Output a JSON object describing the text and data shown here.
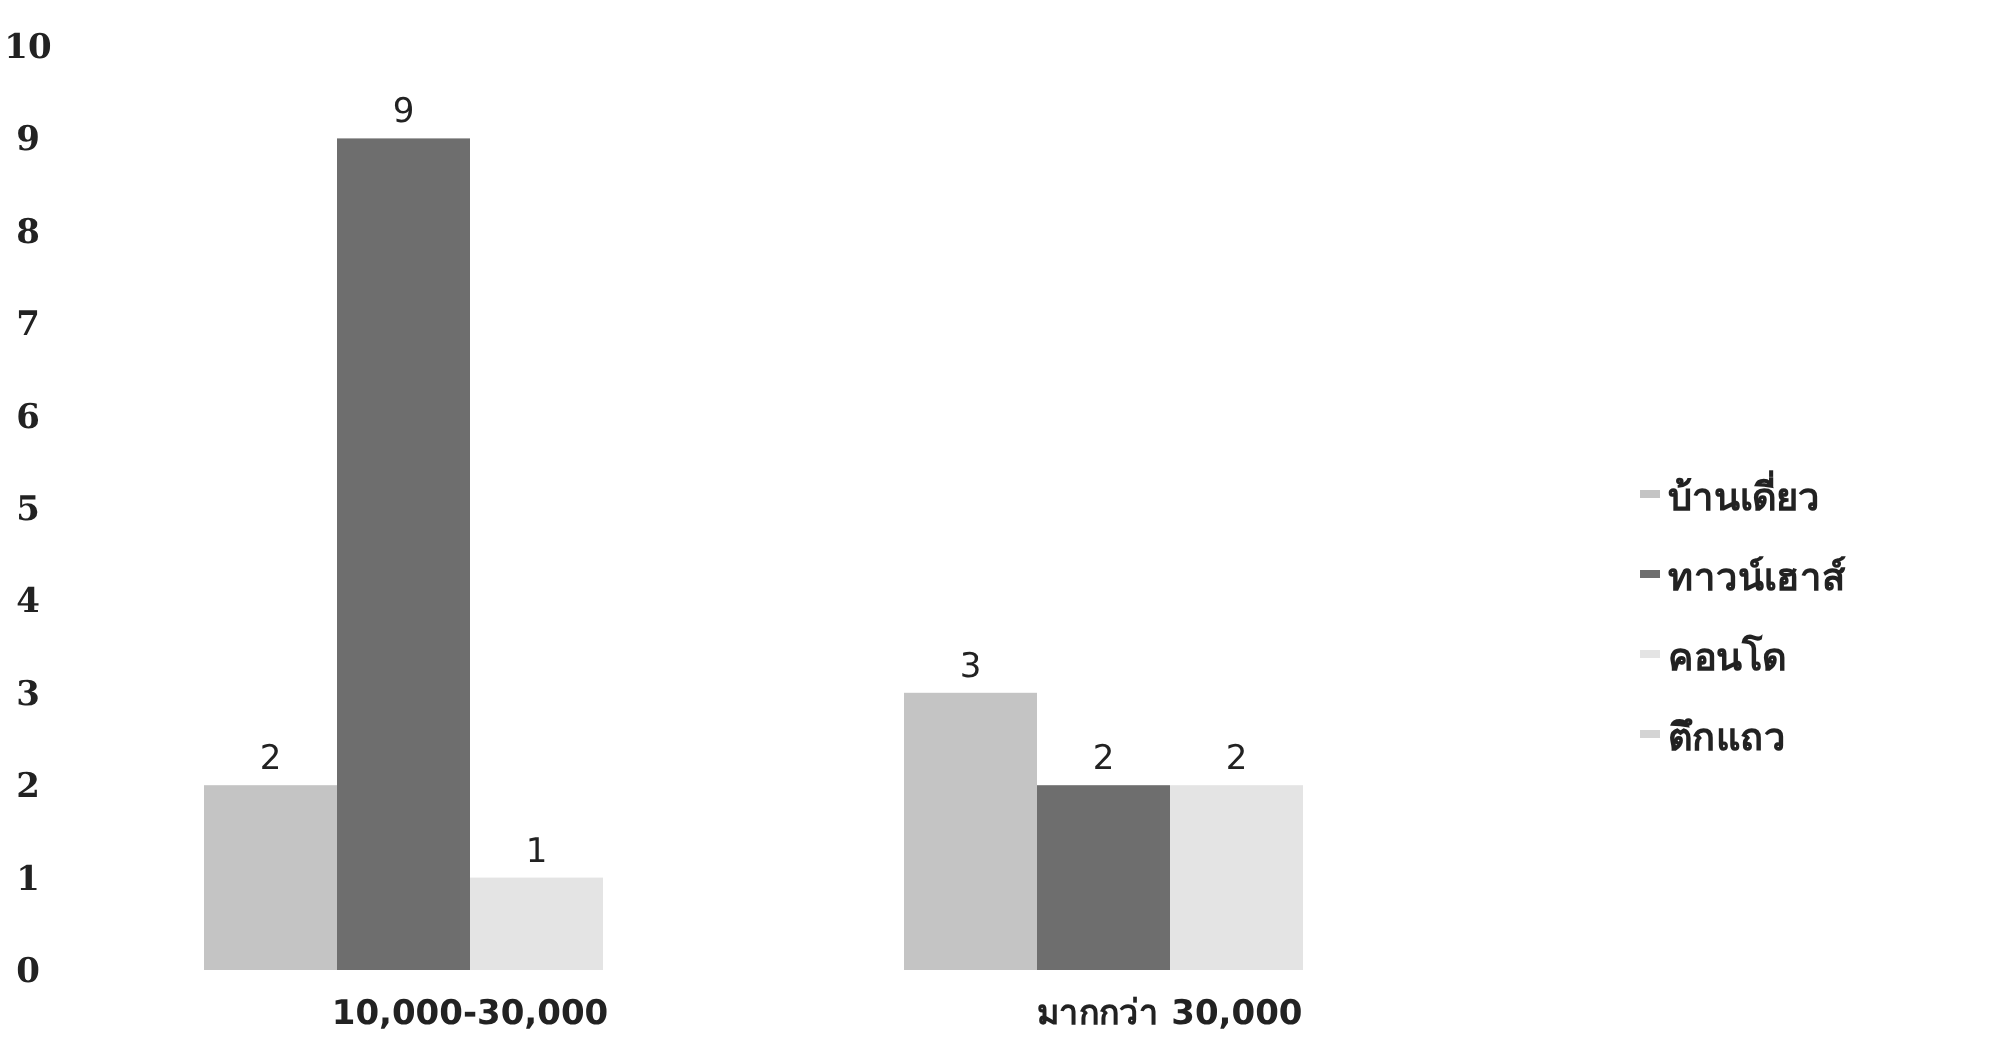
{
  "chart_data": {
    "type": "bar",
    "categories": [
      "10,000-30,000",
      "มากกว่า 30,000"
    ],
    "series": [
      {
        "name": "บ้านเดี่ยว",
        "color": "#c4c4c4",
        "values": [
          2,
          3
        ],
        "value_labels": [
          "2",
          "3"
        ]
      },
      {
        "name": "ทาวน์เฮาส์",
        "color": "#6e6e6e",
        "values": [
          9,
          2
        ],
        "value_labels": [
          "9",
          "2"
        ]
      },
      {
        "name": "คอนโด",
        "color": "#e4e4e4",
        "values": [
          1,
          2
        ],
        "value_labels": [
          "1",
          "2"
        ]
      },
      {
        "name": "ตึกแถว",
        "color": "#d4d4d4",
        "values": [
          0,
          0
        ],
        "value_labels": [
          null,
          null
        ]
      }
    ],
    "ylim": [
      0,
      10
    ],
    "yticks": [
      0,
      1,
      2,
      3,
      4,
      5,
      6,
      7,
      8,
      9,
      10
    ],
    "legend": "right",
    "grid": false
  }
}
